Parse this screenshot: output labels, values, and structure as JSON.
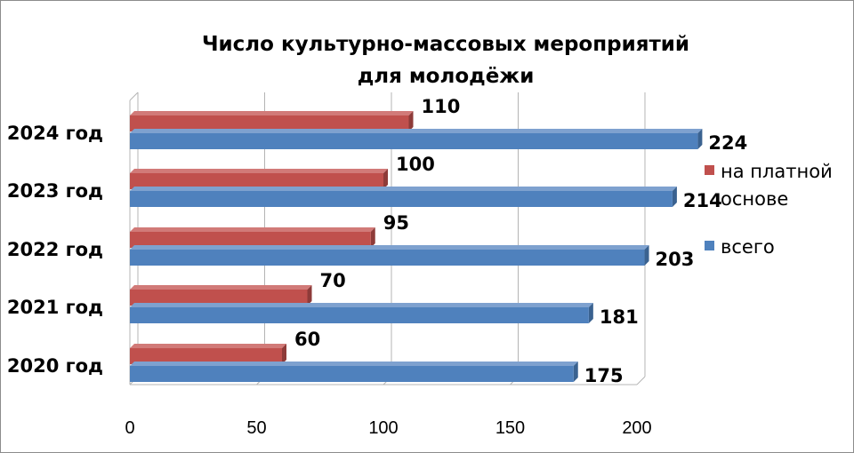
{
  "chart_data": {
    "type": "bar",
    "orientation": "horizontal",
    "title_lines": [
      "Число культурно-массовых мероприятий",
      "для молодёжи"
    ],
    "categories": [
      "2020 год",
      "2021 год",
      "2022 год",
      "2023 год",
      "2024 год"
    ],
    "series": [
      {
        "name": "на платной основе",
        "name_lines": [
          "на платной",
          "основе"
        ],
        "values": [
          60,
          70,
          95,
          100,
          110
        ],
        "color": "#c0504d"
      },
      {
        "name": "всего",
        "name_lines": [
          "всего"
        ],
        "values": [
          175,
          181,
          203,
          214,
          224
        ],
        "color": "#4f81bd"
      }
    ],
    "xlim": [
      0,
      200
    ],
    "xticks": [
      0,
      50,
      100,
      150,
      200
    ],
    "grid": true,
    "legend_position": "right"
  }
}
